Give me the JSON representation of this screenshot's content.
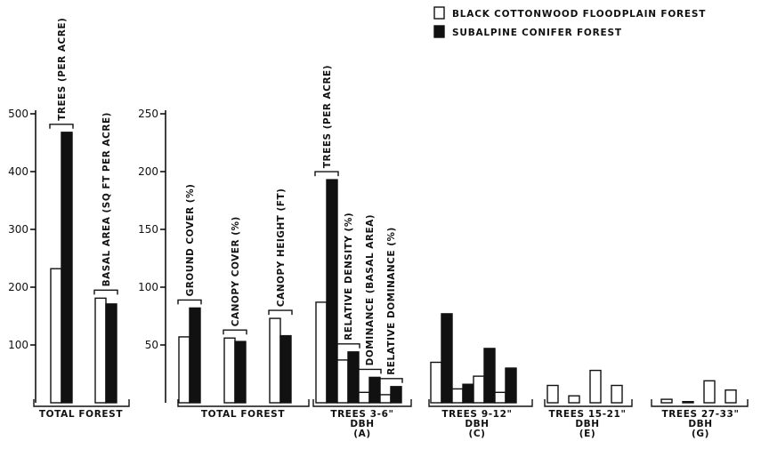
{
  "legend": [
    {
      "label": "BLACK COTTONWOOD FLOODPLAIN FOREST",
      "fill": "#ffffff"
    },
    {
      "label": "SUBALPINE CONIFER FOREST",
      "fill": "#111111"
    }
  ],
  "chart_data": [
    {
      "type": "bar",
      "ylim": [
        0,
        500
      ],
      "yticks": [
        100,
        200,
        300,
        400,
        500
      ],
      "groups": [
        {
          "label": [
            "TOTAL FOREST"
          ],
          "bars": [
            {
              "label": "TREES (PER ACRE)",
              "values": [
                232,
                468
              ]
            },
            {
              "label": "BASAL AREA (SQ FT PER ACRE)",
              "values": [
                181,
                171
              ]
            }
          ]
        }
      ]
    },
    {
      "type": "bar",
      "ylim": [
        0,
        250
      ],
      "yticks": [
        50,
        100,
        150,
        200,
        250
      ],
      "groups": [
        {
          "label": [
            "TOTAL FOREST"
          ],
          "bars": [
            {
              "label": "GROUND COVER (%)",
              "values": [
                57,
                82
              ]
            },
            {
              "label": "CANOPY COVER (%)",
              "values": [
                56,
                53
              ]
            },
            {
              "label": "CANOPY HEIGHT (FT)",
              "values": [
                73,
                58
              ]
            }
          ]
        },
        {
          "label": [
            "TREES 3-6\"",
            "DBH",
            "(A)"
          ],
          "bars": [
            {
              "label": "TREES (PER ACRE)",
              "values": [
                87,
                193
              ]
            },
            {
              "label": "RELATIVE DENSITY (%)",
              "values": [
                37,
                44
              ]
            },
            {
              "label": "DOMINANCE (BASAL AREA)",
              "values": [
                9,
                22
              ]
            },
            {
              "label": "RELATIVE DOMINANCE (%)",
              "values": [
                7,
                14
              ]
            }
          ]
        },
        {
          "label": [
            "TREES 9-12\"",
            "DBH",
            "(C)"
          ],
          "bars": [
            {
              "values": [
                35,
                77
              ]
            },
            {
              "values": [
                12,
                16
              ]
            },
            {
              "values": [
                23,
                47
              ]
            },
            {
              "values": [
                9,
                30
              ]
            }
          ]
        },
        {
          "label": [
            "TREES 15-21\"",
            "DBH",
            "(E)"
          ],
          "bars": [
            {
              "values": [
                15,
                0
              ]
            },
            {
              "values": [
                6,
                0
              ]
            },
            {
              "values": [
                28,
                0
              ]
            },
            {
              "values": [
                15,
                0
              ]
            }
          ]
        },
        {
          "label": [
            "TREES 27-33\"",
            "DBH",
            "(G)"
          ],
          "bars": [
            {
              "values": [
                3,
                0
              ]
            },
            {
              "values": [
                1,
                0
              ]
            },
            {
              "values": [
                19,
                0
              ]
            },
            {
              "values": [
                11,
                0
              ]
            }
          ]
        }
      ]
    }
  ]
}
